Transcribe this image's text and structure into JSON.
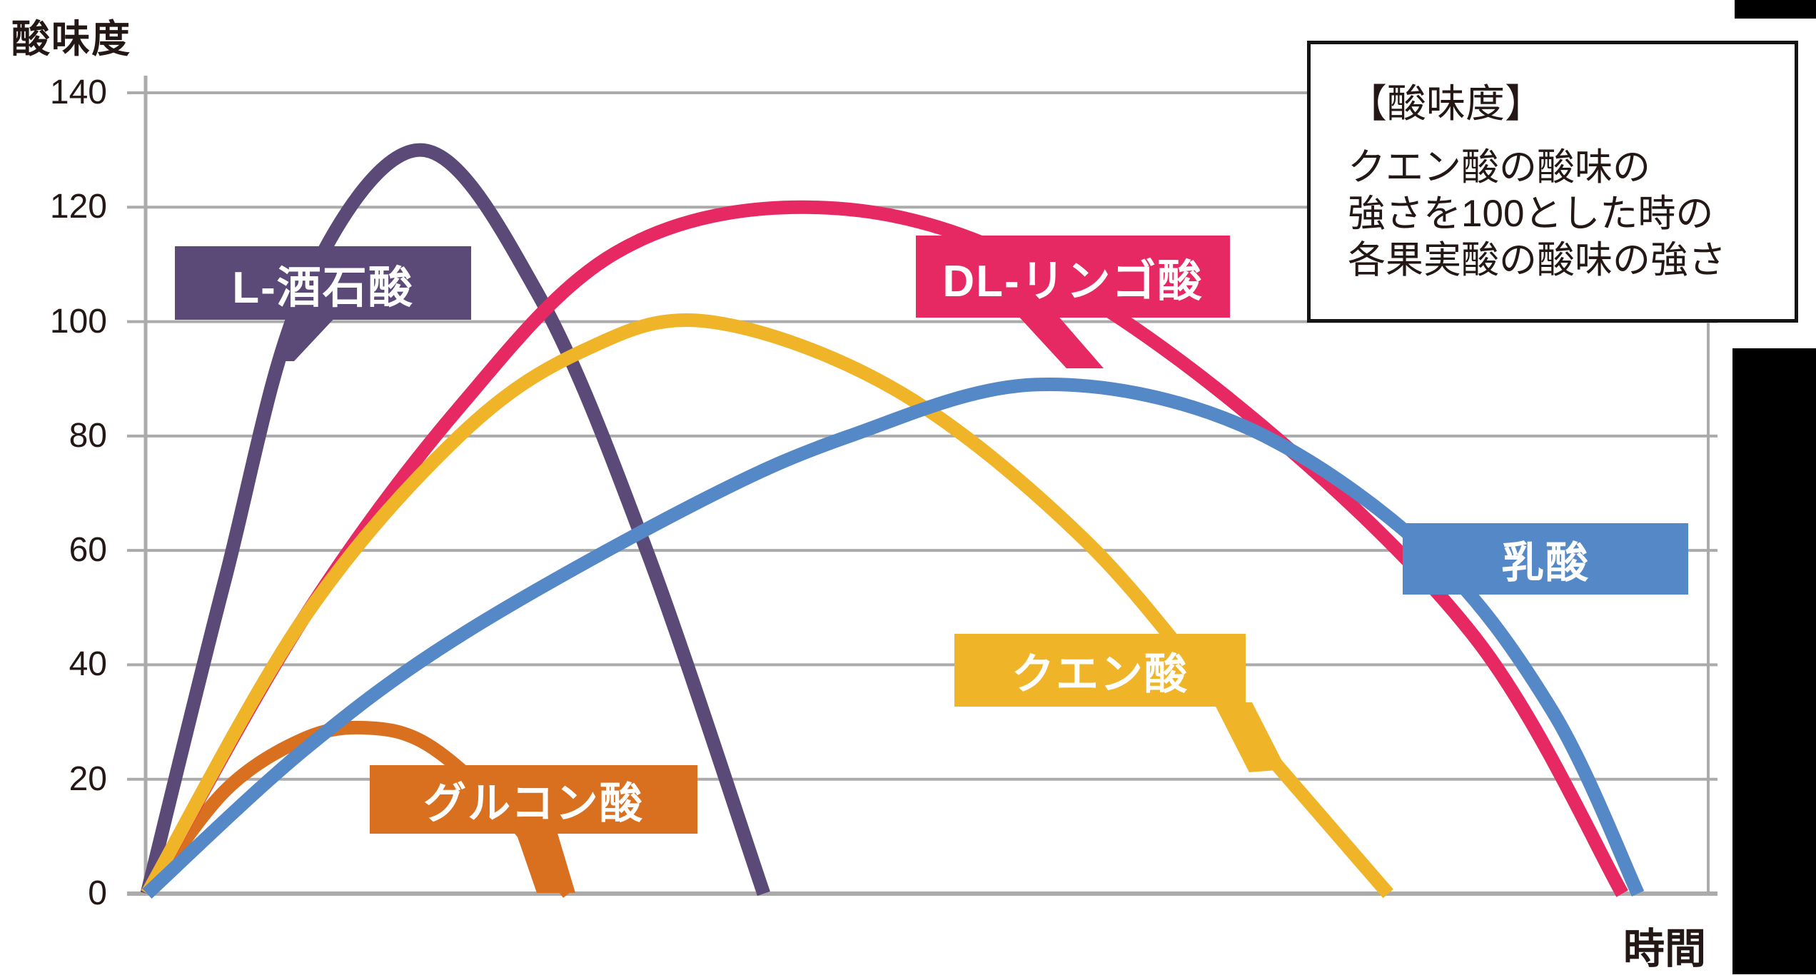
{
  "axis": {
    "y_title": "酸味度",
    "x_title": "時間",
    "ticks": [
      "140",
      "120",
      "100",
      "80",
      "60",
      "40",
      "20",
      "0"
    ]
  },
  "note_box": {
    "title": "【酸味度】",
    "lines": [
      "クエン酸の酸味の",
      "強さを100とした時の",
      "各果実酸の酸味の強さ"
    ]
  },
  "labels": {
    "tartaric": {
      "text": "L-酒石酸",
      "bg": "#5b4a78"
    },
    "malic": {
      "text": "DL-リンゴ酸",
      "bg": "#e62963"
    },
    "citric": {
      "text": "クエン酸",
      "bg": "#f0b429"
    },
    "lactic": {
      "text": "乳酸",
      "bg": "#5588c7"
    },
    "gluconic": {
      "text": "グルコン酸",
      "bg": "#d9701f"
    }
  },
  "colors": {
    "grid": "#ababab",
    "text": "#231815",
    "black_bar": "#000000"
  },
  "chart_data": {
    "type": "line",
    "title": "酸味度",
    "xlabel": "時間",
    "ylabel": "酸味度",
    "ylim": [
      0,
      140
    ],
    "xlim": [
      0,
      100
    ],
    "yticks": [
      140,
      120,
      100,
      80,
      60,
      40,
      20,
      0
    ],
    "grid": true,
    "legend_position": "on-curve-label-boxes",
    "note": "クエン酸の酸味の強さを100とした時の各果実酸の酸味の強さ",
    "series": [
      {
        "name": "L-酒石酸",
        "color": "#5b4a78",
        "peak": {
          "x": 17.5,
          "y": 130
        },
        "points": [
          [
            0,
            0
          ],
          [
            5,
            55
          ],
          [
            10,
            105
          ],
          [
            17.5,
            130
          ],
          [
            25,
            105
          ],
          [
            32,
            60
          ],
          [
            39.5,
            0
          ]
        ]
      },
      {
        "name": "グルコン酸",
        "color": "#d9701f",
        "peak": {
          "x": 14,
          "y": 29
        },
        "points": [
          [
            0,
            0
          ],
          [
            5,
            18
          ],
          [
            10,
            27
          ],
          [
            14,
            29
          ],
          [
            18,
            26
          ],
          [
            23,
            14
          ],
          [
            27,
            0
          ]
        ]
      },
      {
        "name": "DL-リンゴ酸",
        "color": "#e62963",
        "peak": {
          "x": 42,
          "y": 120
        },
        "points": [
          [
            0,
            0
          ],
          [
            10,
            48
          ],
          [
            20,
            85
          ],
          [
            30,
            112
          ],
          [
            42,
            120
          ],
          [
            55,
            112
          ],
          [
            70,
            85
          ],
          [
            85,
            45
          ],
          [
            94.5,
            0
          ]
        ]
      },
      {
        "name": "クエン酸",
        "color": "#f0b429",
        "peak": {
          "x": 36,
          "y": 100
        },
        "points": [
          [
            0,
            0
          ],
          [
            10,
            48
          ],
          [
            20,
            80
          ],
          [
            28,
            95
          ],
          [
            36,
            100
          ],
          [
            48,
            88
          ],
          [
            60,
            62
          ],
          [
            70,
            30
          ],
          [
            79.5,
            0
          ]
        ]
      },
      {
        "name": "乳酸",
        "color": "#5588c7",
        "peak": {
          "x": 57,
          "y": 89
        },
        "points": [
          [
            0,
            0
          ],
          [
            10,
            25
          ],
          [
            20,
            45
          ],
          [
            35,
            68
          ],
          [
            45,
            80
          ],
          [
            57,
            89
          ],
          [
            70,
            82
          ],
          [
            82,
            60
          ],
          [
            90,
            32
          ],
          [
            95.5,
            0
          ]
        ]
      }
    ]
  }
}
